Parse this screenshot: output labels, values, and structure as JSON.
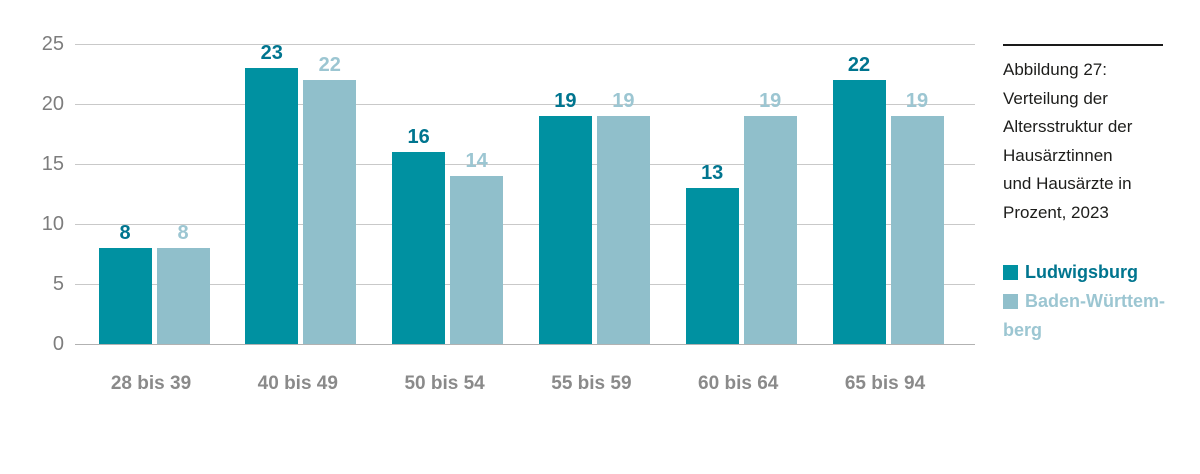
{
  "figure": {
    "caption_lines": [
      "Abbildung 27:",
      "Verteilung der",
      "Altersstruktur der",
      "Hausärztinnen",
      "und Hausärzte in",
      "Prozent, 2023"
    ]
  },
  "legend": {
    "items": [
      {
        "label": "Ludwigsburg",
        "lines": [
          "Ludwigsburg"
        ],
        "color": "#0091A1",
        "text_color": "#00758F"
      },
      {
        "label": "Baden-Württemberg",
        "lines": [
          "Baden-Württem-",
          "berg"
        ],
        "color": "#90BFCB",
        "text_color": "#9CC6D2"
      }
    ]
  },
  "chart_data": {
    "type": "bar",
    "title": "Abbildung 27: Verteilung der Altersstruktur der Hausärztinnen und Hausärzte in Prozent, 2023",
    "categories": [
      "28 bis 39",
      "40 bis 49",
      "50 bis 54",
      "55 bis 59",
      "60 bis 64",
      "65 bis 94"
    ],
    "series": [
      {
        "name": "Ludwigsburg",
        "values": [
          8,
          23,
          16,
          19,
          13,
          22
        ],
        "color": "#0091A1",
        "label_color": "#00758F"
      },
      {
        "name": "Baden-Württemberg",
        "values": [
          8,
          22,
          14,
          19,
          19,
          19
        ],
        "color": "#90BFCB",
        "label_color": "#9CC6D2"
      }
    ],
    "ylim": [
      0,
      25
    ],
    "yticks": [
      0,
      5,
      10,
      15,
      20,
      25
    ],
    "grid": true,
    "value_labels": true,
    "legend_position": "right",
    "xlabel": "",
    "ylabel": "",
    "colors": {
      "grid": "#C9C9C9",
      "axis": "#B2B2B2",
      "tick_label": "#7D7D7D",
      "category_label": "#8A8A8A",
      "caption_text": "#1d1d1b",
      "rule": "#1a1a1a"
    }
  }
}
